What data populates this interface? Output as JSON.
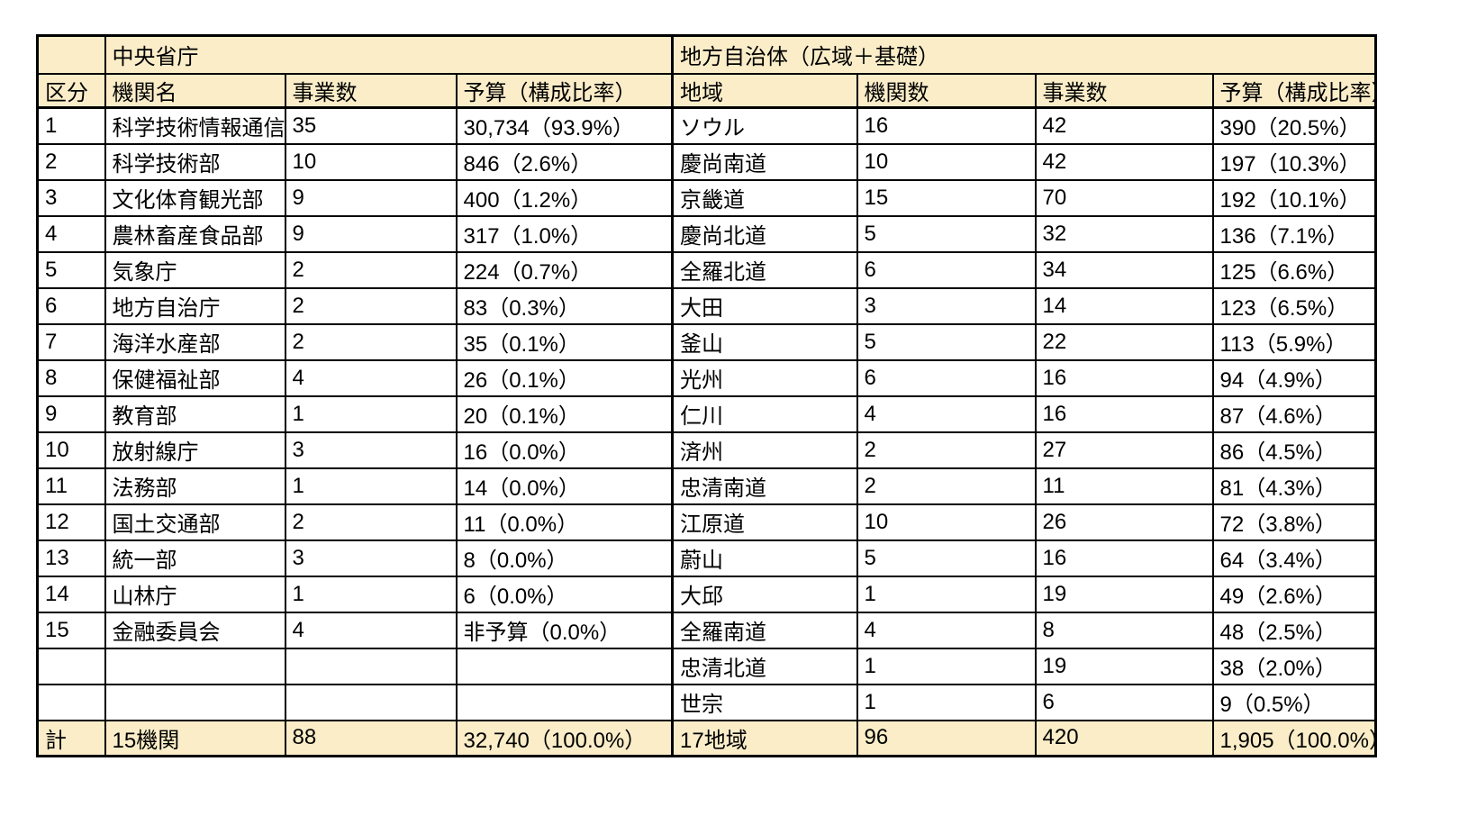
{
  "table": {
    "colors": {
      "header_bg": "#FAEDC8",
      "total_bg": "#FAEDC8",
      "border": "#000000",
      "body_bg": "#FFFFFF",
      "text": "#000000"
    },
    "corner": "",
    "central": {
      "title": "中央省庁",
      "columns": [
        "区分",
        "機関名",
        "事業数",
        "予算（構成比率）"
      ],
      "rows": [
        {
          "no": "1",
          "name": "科学技術情報通信部",
          "projects": "35",
          "budget": "30,734（93.9%）"
        },
        {
          "no": "2",
          "name": "科学技術部",
          "projects": "10",
          "budget": "846（2.6%）"
        },
        {
          "no": "3",
          "name": "文化体育観光部",
          "projects": "9",
          "budget": "400（1.2%）"
        },
        {
          "no": "4",
          "name": "農林畜産食品部",
          "projects": "9",
          "budget": "317（1.0%）"
        },
        {
          "no": "5",
          "name": "気象庁",
          "projects": "2",
          "budget": "224（0.7%）"
        },
        {
          "no": "6",
          "name": "地方自治庁",
          "projects": "2",
          "budget": "83（0.3%）"
        },
        {
          "no": "7",
          "name": "海洋水産部",
          "projects": "2",
          "budget": "35（0.1%）"
        },
        {
          "no": "8",
          "name": "保健福祉部",
          "projects": "4",
          "budget": "26（0.1%）"
        },
        {
          "no": "9",
          "name": "教育部",
          "projects": "1",
          "budget": "20（0.1%）"
        },
        {
          "no": "10",
          "name": "放射線庁",
          "projects": "3",
          "budget": "16（0.0%）"
        },
        {
          "no": "11",
          "name": "法務部",
          "projects": "1",
          "budget": "14（0.0%）"
        },
        {
          "no": "12",
          "name": "国土交通部",
          "projects": "2",
          "budget": "11（0.0%）"
        },
        {
          "no": "13",
          "name": "統一部",
          "projects": "3",
          "budget": "8（0.0%）"
        },
        {
          "no": "14",
          "name": "山林庁",
          "projects": "1",
          "budget": "6（0.0%）"
        },
        {
          "no": "15",
          "name": "金融委員会",
          "projects": "4",
          "budget": "非予算（0.0%）"
        },
        {
          "no": "",
          "name": "",
          "projects": "",
          "budget": ""
        },
        {
          "no": "",
          "name": "",
          "projects": "",
          "budget": ""
        }
      ],
      "total": {
        "label": "計",
        "name": "15機関",
        "projects": "88",
        "budget": "32,740（100.0%）"
      }
    },
    "local": {
      "title": "地方自治体（広域＋基礎）",
      "columns": [
        "地域",
        "機関数",
        "事業数",
        "予算（構成比率）"
      ],
      "rows": [
        {
          "region": "ソウル",
          "orgs": "16",
          "projects": "42",
          "budget": "390（20.5%）"
        },
        {
          "region": "慶尚南道",
          "orgs": "10",
          "projects": "42",
          "budget": "197（10.3%）"
        },
        {
          "region": "京畿道",
          "orgs": "15",
          "projects": "70",
          "budget": "192（10.1%）"
        },
        {
          "region": "慶尚北道",
          "orgs": "5",
          "projects": "32",
          "budget": "136（7.1%）"
        },
        {
          "region": "全羅北道",
          "orgs": "6",
          "projects": "34",
          "budget": "125（6.6%）"
        },
        {
          "region": "大田",
          "orgs": "3",
          "projects": "14",
          "budget": "123（6.5%）"
        },
        {
          "region": "釜山",
          "orgs": "5",
          "projects": "22",
          "budget": "113（5.9%）"
        },
        {
          "region": "光州",
          "orgs": "6",
          "projects": "16",
          "budget": "94（4.9%）"
        },
        {
          "region": "仁川",
          "orgs": "4",
          "projects": "16",
          "budget": "87（4.6%）"
        },
        {
          "region": "済州",
          "orgs": "2",
          "projects": "27",
          "budget": "86（4.5%）"
        },
        {
          "region": "忠清南道",
          "orgs": "2",
          "projects": "11",
          "budget": "81（4.3%）"
        },
        {
          "region": "江原道",
          "orgs": "10",
          "projects": "26",
          "budget": "72（3.8%）"
        },
        {
          "region": "蔚山",
          "orgs": "5",
          "projects": "16",
          "budget": "64（3.4%）"
        },
        {
          "region": "大邱",
          "orgs": "1",
          "projects": "19",
          "budget": "49（2.6%）"
        },
        {
          "region": "全羅南道",
          "orgs": "4",
          "projects": "8",
          "budget": "48（2.5%）"
        },
        {
          "region": "忠清北道",
          "orgs": "1",
          "projects": "19",
          "budget": "38（2.0%）"
        },
        {
          "region": "世宗",
          "orgs": "1",
          "projects": "6",
          "budget": "9（0.5%）"
        }
      ],
      "total": {
        "region": "17地域",
        "orgs": "96",
        "projects": "420",
        "budget": "1,905（100.0%）"
      }
    }
  }
}
